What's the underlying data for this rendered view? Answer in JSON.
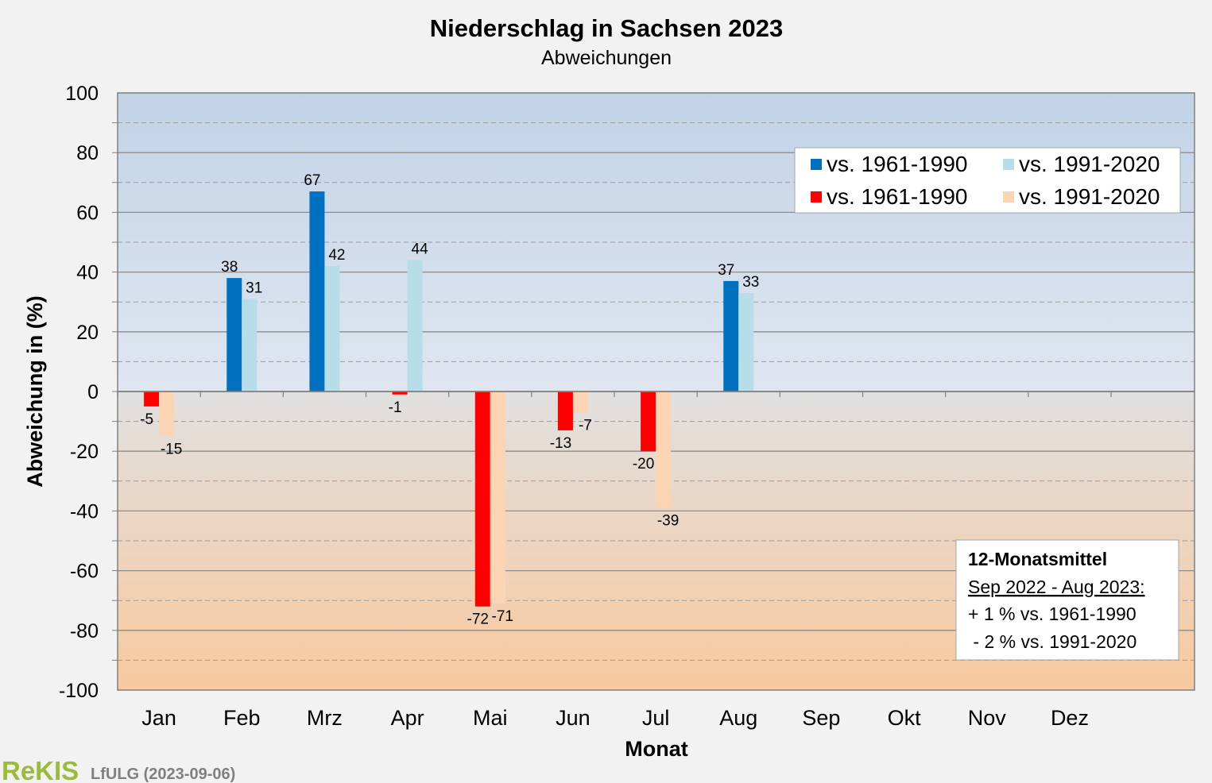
{
  "chart_data": {
    "type": "bar",
    "title": "Niederschlag  in Sachsen 2023",
    "subtitle": "Abweichungen",
    "xlabel": "Monat",
    "ylabel": "Abweichung in (%)",
    "ylim": [
      -100,
      100
    ],
    "yticks": [
      100,
      80,
      60,
      40,
      20,
      0,
      -20,
      -40,
      -60,
      -80,
      -100
    ],
    "grid": true,
    "categories": [
      "Jan",
      "Feb",
      "Mrz",
      "Apr",
      "Mai",
      "Jun",
      "Jul",
      "Aug",
      "Sep",
      "Okt",
      "Nov",
      "Dez"
    ],
    "series": [
      {
        "name": "vs. 1961-1990",
        "values": [
          -5,
          38,
          67,
          -1,
          -72,
          -13,
          -20,
          37,
          null,
          null,
          null,
          null
        ],
        "labels": [
          "-5",
          "38",
          "67",
          "-1",
          "-72",
          "-13",
          "-20",
          "37",
          "",
          "",
          "",
          ""
        ],
        "positive_color": "#0070c0",
        "negative_color": "#ff0000"
      },
      {
        "name": "vs. 1991-2020",
        "values": [
          -15,
          31,
          42,
          44,
          -71,
          -7,
          -39,
          33,
          null,
          null,
          null,
          null
        ],
        "labels": [
          "-15",
          "31",
          "42",
          "44",
          "-71",
          "-7",
          "-39",
          "33",
          "",
          "",
          "",
          ""
        ],
        "positive_color": "#b7dde8",
        "negative_color": "#fbd4b4"
      }
    ],
    "legend": {
      "placement": "top-right",
      "entries": [
        {
          "label": "vs. 1961-1990",
          "color": "#0070c0"
        },
        {
          "label": "vs. 1991-2020",
          "color": "#b7dde8"
        },
        {
          "label": "vs. 1961-1990",
          "color": "#ff0000"
        },
        {
          "label": "vs. 1991-2020",
          "color": "#fbd4b4"
        }
      ]
    },
    "annotation": {
      "heading": "12-Monatsmittel",
      "period": "Sep 2022 - Aug 2023:",
      "line1": "+ 1 % vs. 1961-1990",
      "line2": " - 2 % vs. 1991-2020"
    }
  },
  "footer": {
    "logo": "ReKIS",
    "source": "LfULG (2023-09-06)"
  }
}
